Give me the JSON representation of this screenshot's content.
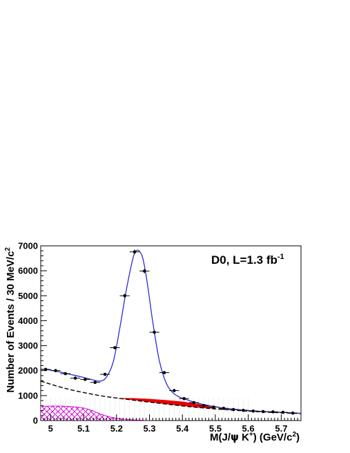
{
  "chart_data": {
    "type": "scatter",
    "title": "",
    "annotation": {
      "main": "D0, L=1.3 fb",
      "superscript": "-1"
    },
    "xlabel": {
      "pre": "M(J/",
      "psi": "ψ",
      "mid": " K",
      "sup": "+",
      "post": ") (GeV/c",
      "sup2": "2",
      "end": ")"
    },
    "ylabel": {
      "main": "Number of Events / 30 MeV/c",
      "sup": "2"
    },
    "xlim": [
      4.97,
      5.76
    ],
    "ylim": [
      0,
      7000
    ],
    "x_ticks": [
      5,
      5.1,
      5.2,
      5.3,
      5.4,
      5.5,
      5.6,
      5.7
    ],
    "x_tick_labels": [
      "5",
      "5.1",
      "5.2",
      "5.3",
      "5.4",
      "5.5",
      "5.6",
      "5.7"
    ],
    "y_ticks": [
      0,
      1000,
      2000,
      3000,
      4000,
      5000,
      6000,
      7000
    ],
    "y_tick_labels": [
      "0",
      "1000",
      "2000",
      "3000",
      "4000",
      "5000",
      "6000",
      "7000"
    ],
    "grid": false,
    "data_points": {
      "x": [
        4.985,
        5.015,
        5.045,
        5.075,
        5.105,
        5.135,
        5.165,
        5.195,
        5.225,
        5.255,
        5.285,
        5.315,
        5.345,
        5.375,
        5.405,
        5.435,
        5.465,
        5.495,
        5.525,
        5.555,
        5.585,
        5.615,
        5.645,
        5.675,
        5.705,
        5.735
      ],
      "y": [
        2050,
        2000,
        1880,
        1700,
        1650,
        1530,
        1850,
        2920,
        5000,
        6760,
        5990,
        3540,
        1920,
        1200,
        880,
        720,
        600,
        540,
        490,
        440,
        410,
        380,
        360,
        350,
        330,
        300
      ],
      "color": "#000000"
    },
    "series": [
      {
        "role": "total_fit",
        "color": "#2b2bd6",
        "x": [
          4.97,
          5.0,
          5.03,
          5.06,
          5.09,
          5.12,
          5.15,
          5.17,
          5.19,
          5.21,
          5.23,
          5.25,
          5.26,
          5.27,
          5.28,
          5.29,
          5.3,
          5.31,
          5.33,
          5.35,
          5.37,
          5.39,
          5.41,
          5.44,
          5.48,
          5.52,
          5.56,
          5.6,
          5.65,
          5.7,
          5.76
        ],
        "y": [
          2060,
          2020,
          1940,
          1850,
          1760,
          1660,
          1580,
          1750,
          2350,
          3700,
          5250,
          6500,
          6800,
          6780,
          6500,
          5800,
          4900,
          3950,
          2400,
          1530,
          1130,
          950,
          850,
          720,
          600,
          510,
          450,
          400,
          360,
          330,
          290
        ]
      },
      {
        "role": "background_fit_dashed",
        "color": "#000000",
        "x": [
          4.97,
          5.05,
          5.15,
          5.25,
          5.35,
          5.45,
          5.55,
          5.65,
          5.76
        ],
        "y": [
          1580,
          1270,
          1000,
          820,
          660,
          520,
          420,
          340,
          280
        ]
      },
      {
        "role": "background_band_red",
        "color": "#e80000",
        "x": [
          5.2,
          5.25,
          5.3,
          5.35,
          5.4,
          5.45,
          5.5
        ],
        "y_low": [
          900,
          820,
          740,
          660,
          590,
          520,
          470
        ],
        "y_high": [
          900,
          900,
          870,
          820,
          760,
          660,
          520
        ]
      },
      {
        "role": "background_hatched_magenta",
        "color": "#cc00cc",
        "x": [
          4.97,
          5.0,
          5.05,
          5.1,
          5.13,
          5.16,
          5.2,
          5.25,
          5.3
        ],
        "y": [
          560,
          580,
          570,
          500,
          380,
          220,
          90,
          30,
          0
        ]
      }
    ]
  }
}
